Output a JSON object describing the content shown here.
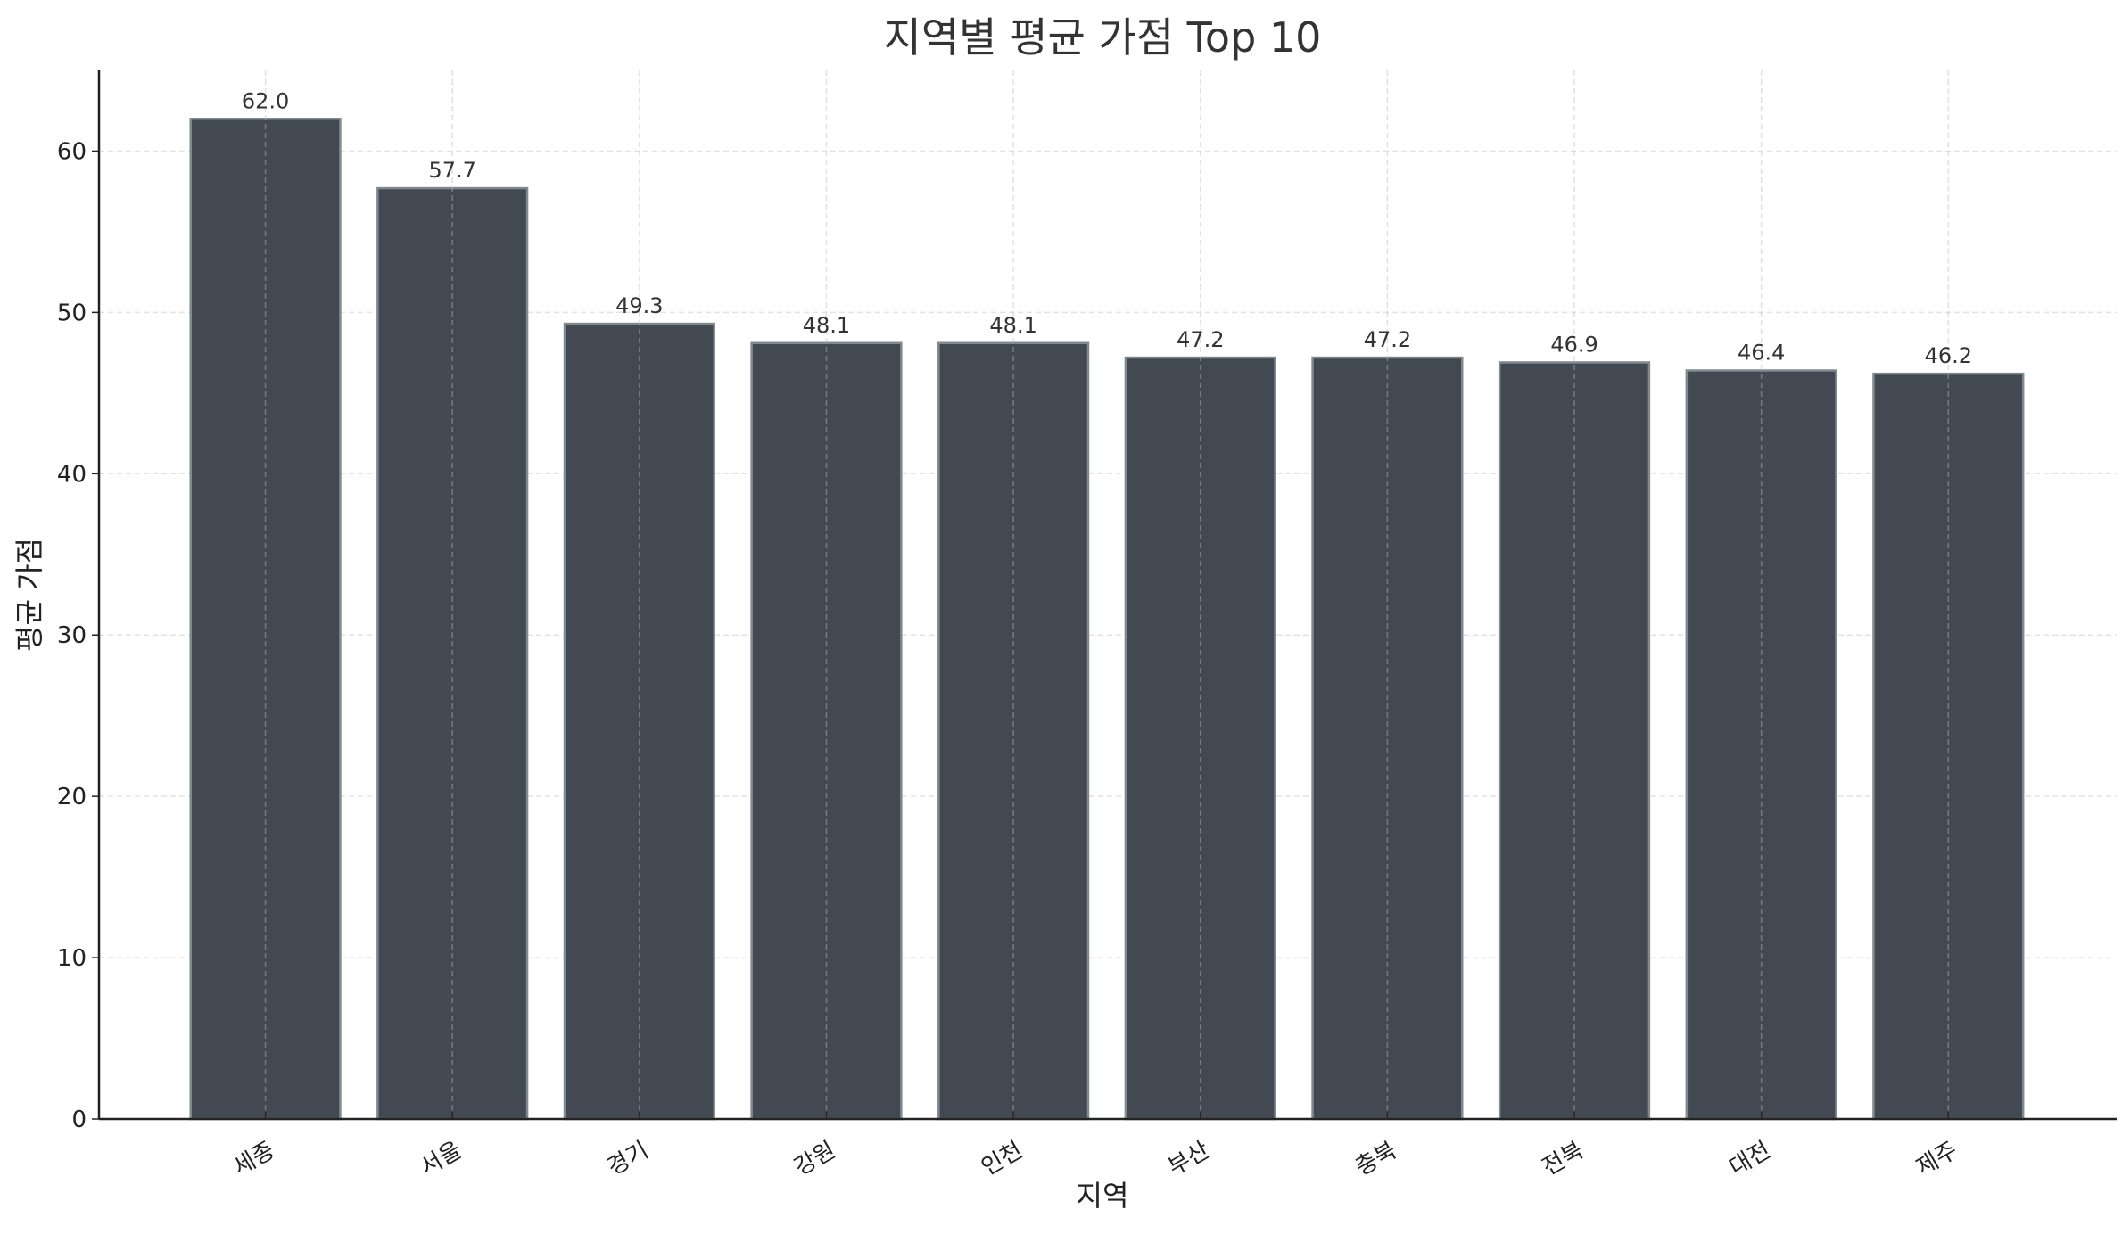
{
  "chart_data": {
    "type": "bar",
    "title": "지역별 평균 가점 Top 10",
    "xlabel": "지역",
    "ylabel": "평균 가점",
    "categories": [
      "세종",
      "서울",
      "경기",
      "강원",
      "인천",
      "부산",
      "충북",
      "전북",
      "대전",
      "제주"
    ],
    "values": [
      62.0,
      57.7,
      49.3,
      48.1,
      48.1,
      47.2,
      47.2,
      46.9,
      46.4,
      46.2
    ],
    "data_labels": [
      "62.0",
      "57.7",
      "49.3",
      "48.1",
      "48.1",
      "47.2",
      "47.2",
      "46.9",
      "46.4",
      "46.2"
    ],
    "ylim": [
      0,
      65
    ],
    "yticks": [
      0,
      10,
      20,
      30,
      40,
      50,
      60
    ],
    "grid": true,
    "legend": "none",
    "colors": {
      "bar": "#424953",
      "bar_edge": "#7f8a8f",
      "grid": "#e3e3e3",
      "text": "#333333"
    }
  }
}
